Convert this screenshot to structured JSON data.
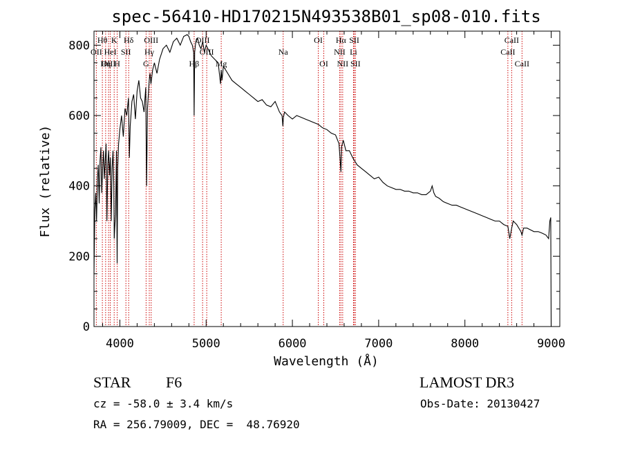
{
  "chart_data": {
    "type": "line",
    "title": "spec-56410-HD170215N493538B01_sp08-010.fits",
    "xlabel": "Wavelength (Å)",
    "ylabel": "Flux (relative)",
    "xlim": [
      3700,
      9100
    ],
    "ylim": [
      0,
      840
    ],
    "xticks": [
      4000,
      5000,
      6000,
      7000,
      8000,
      9000
    ],
    "yticks": [
      0,
      200,
      400,
      600,
      800
    ],
    "series": [
      {
        "name": "flux",
        "x": [
          3700,
          3710,
          3720,
          3730,
          3740,
          3750,
          3760,
          3770,
          3780,
          3790,
          3800,
          3810,
          3820,
          3830,
          3840,
          3850,
          3860,
          3870,
          3880,
          3890,
          3900,
          3910,
          3920,
          3930,
          3935,
          3940,
          3950,
          3960,
          3968,
          3975,
          3985,
          4000,
          4020,
          4040,
          4060,
          4080,
          4100,
          4110,
          4120,
          4140,
          4160,
          4180,
          4200,
          4220,
          4240,
          4260,
          4280,
          4300,
          4310,
          4320,
          4340,
          4350,
          4360,
          4380,
          4400,
          4430,
          4460,
          4500,
          4540,
          4580,
          4620,
          4660,
          4700,
          4740,
          4780,
          4800,
          4820,
          4840,
          4855,
          4861,
          4867,
          4880,
          4900,
          4920,
          4940,
          4960,
          4980,
          5000,
          5020,
          5060,
          5100,
          5140,
          5167,
          5175,
          5184,
          5200,
          5250,
          5300,
          5350,
          5400,
          5450,
          5500,
          5550,
          5600,
          5650,
          5700,
          5750,
          5800,
          5850,
          5880,
          5890,
          5896,
          5910,
          5950,
          6000,
          6050,
          6100,
          6150,
          6200,
          6250,
          6300,
          6350,
          6400,
          6450,
          6500,
          6540,
          6555,
          6563,
          6570,
          6590,
          6620,
          6660,
          6700,
          6750,
          6800,
          6850,
          6900,
          6950,
          7000,
          7050,
          7100,
          7150,
          7200,
          7250,
          7300,
          7350,
          7400,
          7450,
          7500,
          7550,
          7600,
          7620,
          7640,
          7660,
          7700,
          7750,
          7800,
          7850,
          7900,
          7950,
          8000,
          8050,
          8100,
          8150,
          8200,
          8250,
          8300,
          8350,
          8400,
          8450,
          8498,
          8520,
          8542,
          8560,
          8600,
          8650,
          8662,
          8680,
          8720,
          8760,
          8800,
          8850,
          8900,
          8940,
          8970,
          8985,
          8995,
          9000
        ],
        "values": [
          150,
          330,
          380,
          300,
          420,
          460,
          350,
          470,
          510,
          380,
          450,
          500,
          420,
          470,
          520,
          300,
          460,
          500,
          430,
          480,
          300,
          450,
          500,
          400,
          250,
          280,
          320,
          500,
          180,
          450,
          520,
          560,
          600,
          540,
          620,
          600,
          650,
          480,
          570,
          640,
          660,
          590,
          670,
          700,
          650,
          640,
          610,
          680,
          400,
          620,
          700,
          720,
          690,
          730,
          750,
          720,
          760,
          790,
          800,
          780,
          810,
          820,
          800,
          825,
          830,
          825,
          810,
          800,
          780,
          600,
          780,
          810,
          820,
          800,
          790,
          810,
          780,
          800,
          790,
          770,
          760,
          750,
          690,
          730,
          700,
          740,
          720,
          700,
          690,
          680,
          670,
          660,
          650,
          640,
          645,
          630,
          625,
          640,
          610,
          600,
          570,
          595,
          610,
          600,
          590,
          600,
          595,
          590,
          585,
          580,
          575,
          565,
          560,
          550,
          545,
          520,
          470,
          440,
          510,
          530,
          500,
          500,
          480,
          460,
          450,
          440,
          430,
          420,
          425,
          410,
          400,
          395,
          390,
          390,
          385,
          385,
          380,
          380,
          375,
          375,
          385,
          400,
          380,
          370,
          365,
          355,
          350,
          345,
          345,
          340,
          335,
          330,
          325,
          320,
          315,
          310,
          305,
          300,
          300,
          290,
          285,
          250,
          280,
          300,
          290,
          270,
          260,
          280,
          280,
          275,
          270,
          270,
          265,
          260,
          250,
          300,
          310,
          0
        ]
      }
    ],
    "spectral_lines": [
      {
        "label": "OII",
        "x": 3727,
        "row": 1
      },
      {
        "label": "Hθ",
        "x": 3797,
        "row": 0
      },
      {
        "label": "OIII",
        "x": 3869,
        "row": 2
      },
      {
        "label": "HeI",
        "x": 3889,
        "row": 1
      },
      {
        "label": "K",
        "x": 3934,
        "row": 0
      },
      {
        "label": "Hη",
        "x": 3835,
        "row": 2
      },
      {
        "label": "H",
        "x": 3969,
        "row": 2
      },
      {
        "label": "SII",
        "x": 4070,
        "row": 1
      },
      {
        "label": "Hδ",
        "x": 4102,
        "row": 0
      },
      {
        "label": "OIII",
        "x": 4363,
        "row": 0
      },
      {
        "label": "Hγ",
        "x": 4341,
        "row": 1
      },
      {
        "label": "G",
        "x": 4304,
        "row": 2
      },
      {
        "label": "Hβ",
        "x": 4861,
        "row": 2
      },
      {
        "label": "OIII",
        "x": 4959,
        "row": 0
      },
      {
        "label": "OIII",
        "x": 5007,
        "row": 1
      },
      {
        "label": "Mg",
        "x": 5175,
        "row": 2
      },
      {
        "label": "Na",
        "x": 5893,
        "row": 1
      },
      {
        "label": "OI",
        "x": 6300,
        "row": 0
      },
      {
        "label": "OI",
        "x": 6364,
        "row": 2
      },
      {
        "label": "Hα",
        "x": 6563,
        "row": 0
      },
      {
        "label": "NII",
        "x": 6548,
        "row": 1
      },
      {
        "label": "NII",
        "x": 6583,
        "row": 2
      },
      {
        "label": "SII",
        "x": 6717,
        "row": 0
      },
      {
        "label": "Li",
        "x": 6708,
        "row": 1
      },
      {
        "label": "SII",
        "x": 6731,
        "row": 2
      },
      {
        "label": "CaII",
        "x": 8498,
        "row": 1
      },
      {
        "label": "CaII",
        "x": 8542,
        "row": 0
      },
      {
        "label": "CaII",
        "x": 8662,
        "row": 2
      }
    ]
  },
  "info": {
    "object_type": "STAR",
    "subclass": "F6",
    "survey": "LAMOST DR3",
    "cz": "cz = -58.0 ± 3.4 km/s",
    "obs_date": "Obs-Date: 20130427",
    "coords": "RA = 256.79009, DEC =  48.76920"
  },
  "colors": {
    "axis": "#000000",
    "line": "#000000",
    "marker": "#cc0000"
  }
}
